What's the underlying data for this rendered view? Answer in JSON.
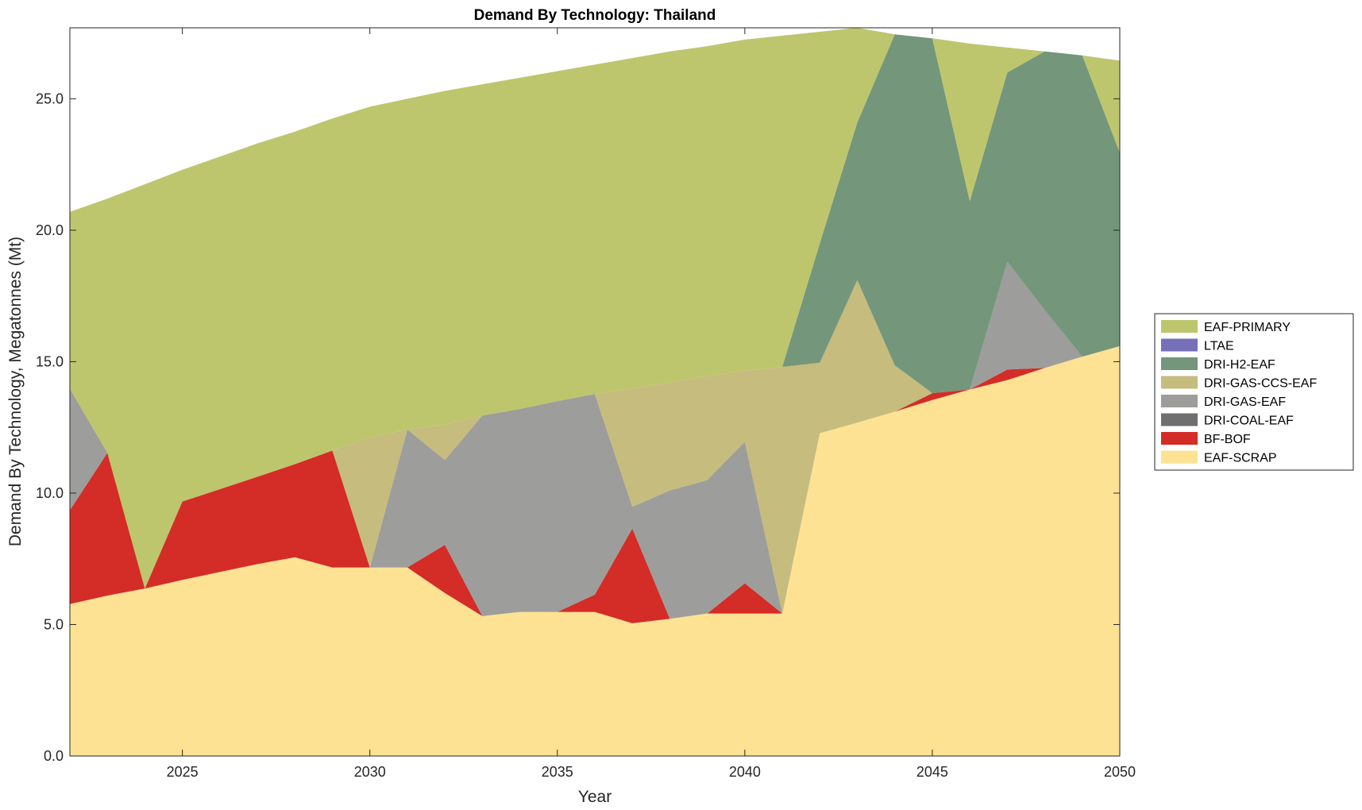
{
  "chart_data": {
    "type": "area",
    "stacked": true,
    "title": "Demand By Technology: Thailand",
    "xlabel": "Year",
    "ylabel": "Demand By Technology, Megatonnes (Mt)",
    "xlim": [
      2022,
      2050
    ],
    "ylim": [
      0,
      27.7
    ],
    "xticks": [
      2025,
      2030,
      2035,
      2040,
      2045,
      2050
    ],
    "xtick_labels": [
      "2025",
      "2030",
      "2035",
      "2040",
      "2045",
      "2050"
    ],
    "yticks": [
      0,
      5,
      10,
      15,
      20,
      25
    ],
    "ytick_labels": [
      "0.0",
      "5.0",
      "10.0",
      "15.0",
      "20.0",
      "25.0"
    ],
    "legend_position": "right",
    "x": [
      2022,
      2023,
      2024,
      2025,
      2026,
      2027,
      2028,
      2029,
      2030,
      2031,
      2032,
      2033,
      2034,
      2035,
      2036,
      2037,
      2038,
      2039,
      2040,
      2041,
      2042,
      2043,
      2044,
      2045,
      2046,
      2047,
      2048,
      2049,
      2050
    ],
    "series": [
      {
        "name": "EAF-SCRAP",
        "color": "#fee294",
        "values": [
          5.78,
          6.1,
          6.37,
          6.7,
          7.0,
          7.3,
          7.56,
          7.17,
          7.17,
          7.17,
          6.2,
          5.32,
          5.48,
          5.48,
          5.48,
          5.05,
          5.22,
          5.42,
          5.42,
          5.42,
          12.28,
          12.68,
          13.1,
          13.54,
          13.94,
          14.3,
          14.76,
          15.19,
          15.59
        ]
      },
      {
        "name": "BF-BOF",
        "color": "#d42c26",
        "values": [
          3.57,
          5.43,
          0,
          2.98,
          3.15,
          3.32,
          3.54,
          4.45,
          0,
          0,
          1.83,
          0,
          0,
          0,
          0.66,
          3.6,
          0,
          0,
          1.15,
          0,
          0,
          0,
          0,
          0.26,
          0,
          0.4,
          0,
          0,
          0
        ]
      },
      {
        "name": "DRI-COAL-EAF",
        "color": "#6f6f6f",
        "values": [
          0,
          0,
          0,
          0,
          0,
          0,
          0,
          0,
          0,
          0,
          0,
          0,
          0,
          0,
          0,
          0,
          0,
          0,
          0,
          0,
          0,
          0,
          0,
          0,
          0,
          0,
          0,
          0,
          0
        ]
      },
      {
        "name": "DRI-GAS-EAF",
        "color": "#9d9d9b",
        "values": [
          4.62,
          0,
          0,
          0,
          0,
          0,
          0,
          0,
          0,
          5.25,
          3.23,
          7.63,
          7.72,
          8.02,
          7.63,
          0.83,
          4.88,
          5.08,
          5.38,
          0,
          0,
          0,
          0,
          0,
          0,
          4.1,
          2.2,
          0,
          0
        ]
      },
      {
        "name": "DRI-GAS-CCS-EAF",
        "color": "#c6bc7d",
        "values": [
          0,
          0,
          0,
          0,
          0,
          0,
          0,
          0,
          4.95,
          0,
          1.34,
          0,
          0,
          0,
          0,
          4.5,
          4.1,
          3.95,
          2.7,
          9.38,
          2.68,
          5.42,
          1.76,
          0,
          0,
          0,
          0,
          0,
          0
        ]
      },
      {
        "name": "DRI-H2-EAF",
        "color": "#74967b",
        "values": [
          0,
          0,
          0,
          0,
          0,
          0,
          0,
          0,
          0,
          0,
          0,
          0,
          0,
          0,
          0,
          0,
          0,
          0,
          0,
          0,
          4.54,
          6.0,
          12.59,
          13.5,
          7.16,
          7.2,
          9.84,
          11.46,
          7.36
        ]
      },
      {
        "name": "LTAE",
        "color": "#7670b8",
        "values": [
          0,
          0,
          0,
          0,
          0,
          0,
          0,
          0,
          0,
          0,
          0,
          0,
          0,
          0,
          0,
          0,
          0,
          0,
          0,
          0,
          0,
          0,
          0,
          0,
          0,
          0,
          0,
          0,
          0
        ]
      },
      {
        "name": "EAF-PRIMARY",
        "color": "#bdc66c",
        "values": [
          6.73,
          9.67,
          15.38,
          12.62,
          12.65,
          12.68,
          12.65,
          12.63,
          12.58,
          12.58,
          12.7,
          12.6,
          12.6,
          12.55,
          12.53,
          12.57,
          12.6,
          12.55,
          12.6,
          12.6,
          8.05,
          3.6,
          0,
          0,
          6.0,
          0.95,
          0,
          0,
          3.5
        ]
      }
    ],
    "legend_order": [
      "EAF-PRIMARY",
      "LTAE",
      "DRI-H2-EAF",
      "DRI-GAS-CCS-EAF",
      "DRI-GAS-EAF",
      "DRI-COAL-EAF",
      "BF-BOF",
      "EAF-SCRAP"
    ]
  }
}
